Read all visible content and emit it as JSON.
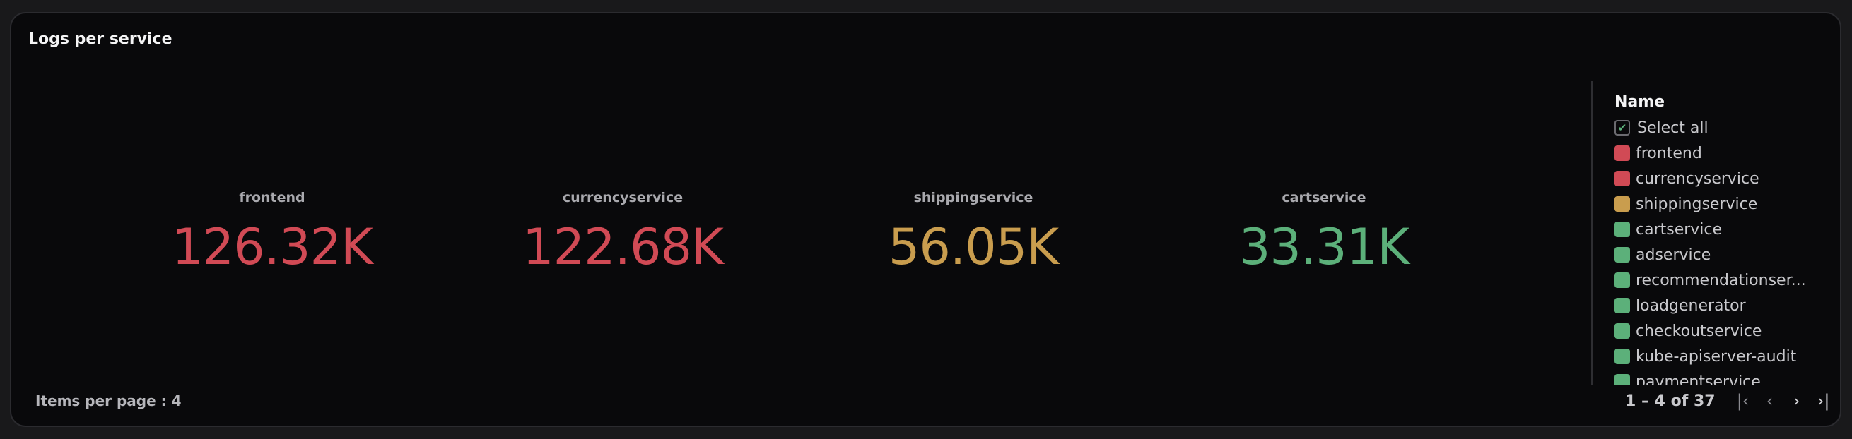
{
  "panel": {
    "title": "Logs per service"
  },
  "values": [
    {
      "name": "frontend",
      "value": "126.32K",
      "color": "#d14a55"
    },
    {
      "name": "currencyservice",
      "value": "122.68K",
      "color": "#d14a55"
    },
    {
      "name": "shippingservice",
      "value": "56.05K",
      "color": "#c99d4e"
    },
    {
      "name": "cartservice",
      "value": "33.31K",
      "color": "#5cb07a"
    }
  ],
  "legend": {
    "header": "Name",
    "select_all": "Select all",
    "select_all_checked": true,
    "items": [
      {
        "label": "frontend",
        "color": "#d14a55"
      },
      {
        "label": "currencyservice",
        "color": "#d14a55"
      },
      {
        "label": "shippingservice",
        "color": "#c99d4e"
      },
      {
        "label": "cartservice",
        "color": "#5cb07a"
      },
      {
        "label": "adservice",
        "color": "#5cb07a"
      },
      {
        "label": "recommendationser...",
        "color": "#5cb07a"
      },
      {
        "label": "loadgenerator",
        "color": "#5cb07a"
      },
      {
        "label": "checkoutservice",
        "color": "#5cb07a"
      },
      {
        "label": "kube-apiserver-audit",
        "color": "#5cb07a"
      },
      {
        "label": "paymentservice",
        "color": "#5cb07a"
      }
    ]
  },
  "footer": {
    "items_per_page": "Items per page : 4",
    "range": "1 – 4 of 37",
    "icons": {
      "first": "|‹",
      "prev": "‹",
      "next": "›",
      "last": "›|"
    }
  }
}
